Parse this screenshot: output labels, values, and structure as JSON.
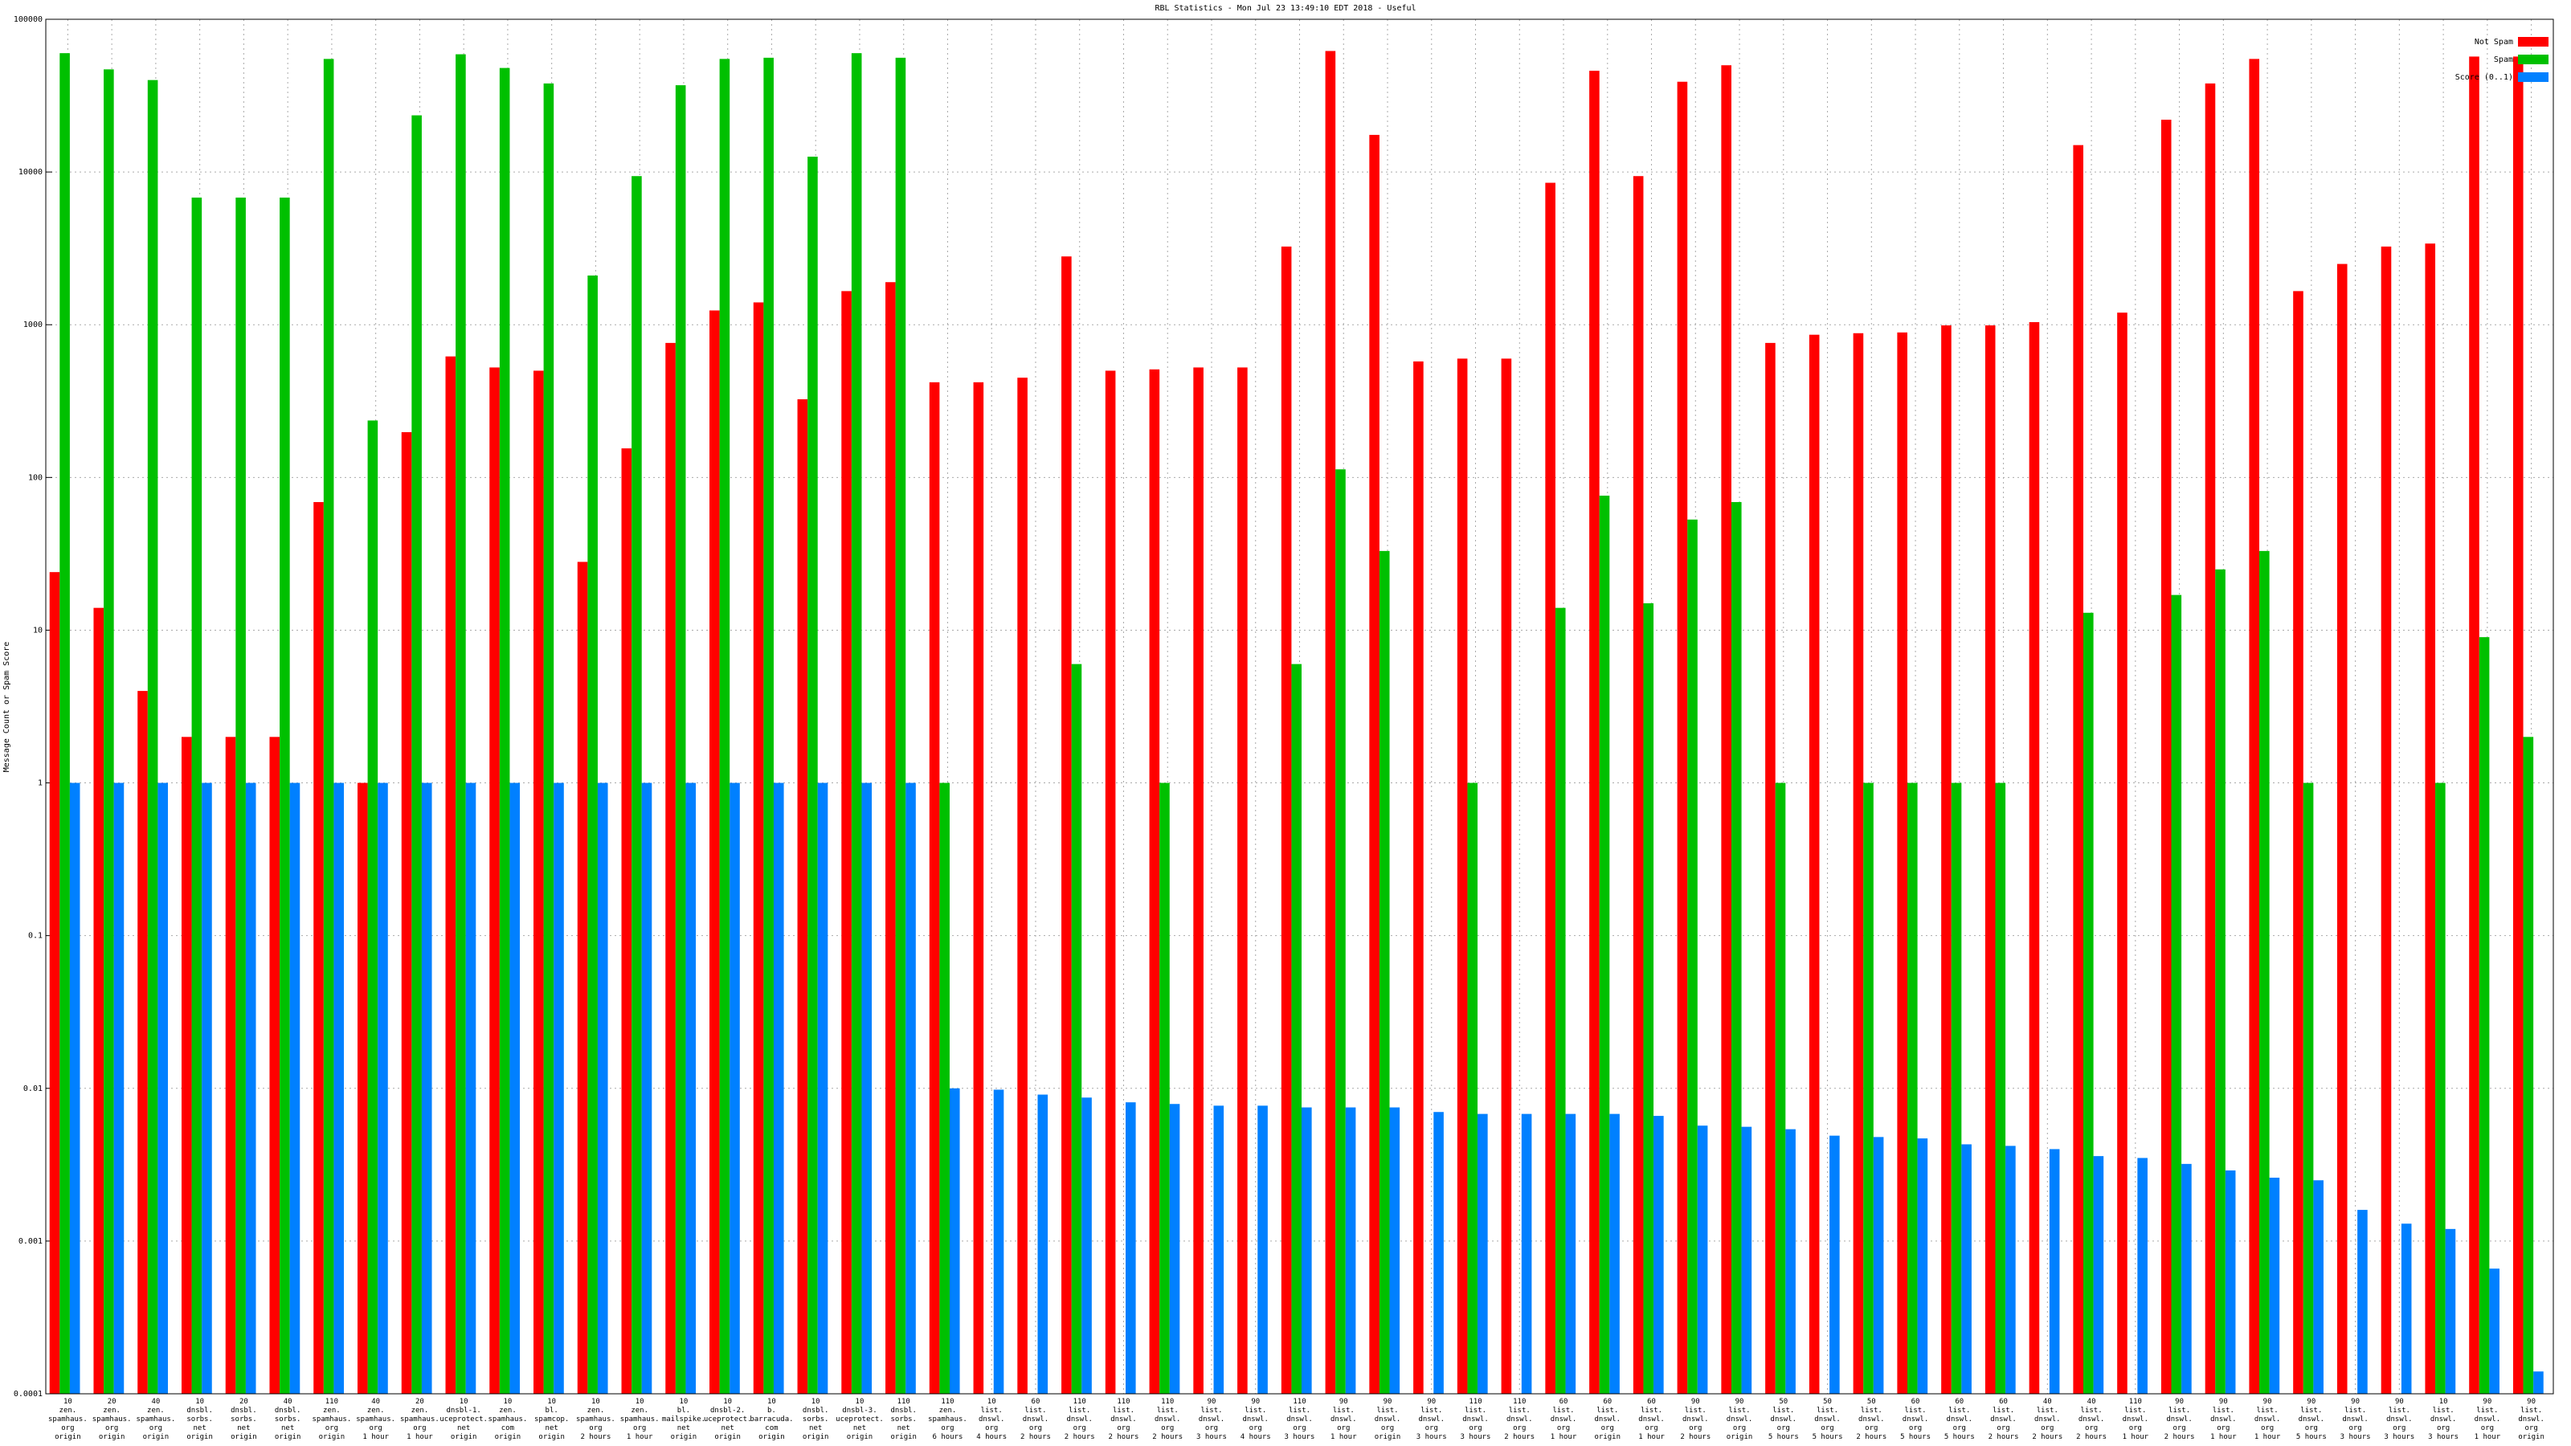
{
  "chart_data": {
    "type": "bar",
    "title": "RBL Statistics - Mon Jul 23 13:49:10 EDT 2018 - Useful",
    "y_label": "Message Count or Spam Score",
    "log_y": true,
    "grid": true,
    "legend": "top-right",
    "ylim": [
      0.0001,
      100000
    ],
    "yticks": [
      0.0001,
      0.001,
      0.01,
      0.1,
      1,
      10,
      100,
      1000,
      10000,
      100000
    ],
    "categories": [
      "10\nzen.\nspamhaus.\norg\norigin",
      "20\nzen.\nspamhaus.\norg\norigin",
      "40\nzen.\nspamhaus.\norg\norigin",
      "10\ndnsbl.\nsorbs.\nnet\norigin",
      "20\ndnsbl.\nsorbs.\nnet\norigin",
      "40\ndnsbl.\nsorbs.\nnet\norigin",
      "110\nzen.\nspamhaus.\norg\norigin",
      "40\nzen.\nspamhaus.\norg\n1 hour",
      "20\nzen.\nspamhaus.\norg\n1 hour",
      "10\ndnsbl-1.\nuceprotect.\nnet\norigin",
      "10\nzen.\nspamhaus.\ncom\norigin",
      "10\nbl.\nspamcop.\nnet\norigin",
      "10\nzen.\nspamhaus.\norg\n2 hours",
      "10\nzen.\nspamhaus.\norg\n1 hour",
      "10\nbl.\nmailspike.\nnet\norigin",
      "10\ndnsbl-2.\nuceprotect.\nnet\norigin",
      "10\nb.\nbarracuda.\ncom\norigin",
      "10\ndnsbl.\nsorbs.\nnet\norigin",
      "10\ndnsbl-3.\nuceprotect.\nnet\norigin",
      "110\ndnsbl.\nsorbs.\nnet\norigin",
      "110\nzen.\nspamhaus.\norg\n6 hours",
      "10\nlist.\ndnswl.\norg\n4 hours",
      "60\nlist.\ndnswl.\norg\n2 hours",
      "110\nlist.\ndnswl.\norg\n2 hours",
      "110\nlist.\ndnswl.\norg\n2 hours",
      "110\nlist.\ndnswl.\norg\n2 hours",
      "90\nlist.\ndnswl.\norg\n3 hours",
      "90\nlist.\ndnswl.\norg\n4 hours",
      "110\nlist.\ndnswl.\norg\n3 hours",
      "90\nlist.\ndnswl.\norg\n1 hour",
      "90\nlist.\ndnswl.\norg\norigin",
      "90\nlist.\ndnswl.\norg\n3 hours",
      "110\nlist.\ndnswl.\norg\n3 hours",
      "110\nlist.\ndnswl.\norg\n2 hours",
      "60\nlist.\ndnswl.\norg\n1 hour",
      "60\nlist.\ndnswl.\norg\norigin",
      "60\nlist.\ndnswl.\norg\n1 hour",
      "90\nlist.\ndnswl.\norg\n2 hours",
      "90\nlist.\ndnswl.\norg\norigin",
      "50\nlist.\ndnswl.\norg\n5 hours",
      "50\nlist.\ndnswl.\norg\n5 hours",
      "50\nlist.\ndnswl.\norg\n2 hours",
      "60\nlist.\ndnswl.\norg\n5 hours",
      "60\nlist.\ndnswl.\norg\n5 hours",
      "60\nlist.\ndnswl.\norg\n2 hours",
      "40\nlist.\ndnswl.\norg\n2 hours",
      "40\nlist.\ndnswl.\norg\n2 hours",
      "110\nlist.\ndnswl.\norg\n1 hour",
      "90\nlist.\ndnswl.\norg\n2 hours",
      "90\nlist.\ndnswl.\norg\n1 hour",
      "90\nlist.\ndnswl.\norg\n1 hour",
      "90\nlist.\ndnswl.\norg\n5 hours",
      "90\nlist.\ndnswl.\norg\n3 hours",
      "90\nlist.\ndnswl.\norg\n3 hours",
      "10\nlist.\ndnswl.\norg\n3 hours",
      "90\nlist.\ndnswl.\norg\n1 hour",
      "90\nlist.\ndnswl.\norg\norigin"
    ],
    "series": [
      {
        "name": "Not Spam",
        "color": "#ff0000",
        "values": [
          24,
          14,
          4,
          2,
          2,
          2,
          69,
          1,
          198,
          620,
          525,
          500,
          28,
          155,
          760,
          1240,
          1400,
          325,
          1660,
          1900,
          420,
          420,
          450,
          2800,
          500,
          510,
          525,
          525,
          3250,
          62000,
          17500,
          575,
          600,
          600,
          8500,
          46000,
          9400,
          39000,
          50000,
          760,
          860,
          880,
          890,
          990,
          990,
          1040,
          15000,
          1200,
          22000,
          38000,
          55000,
          1660,
          2500,
          3250,
          3400,
          57000,
          57000
        ]
      },
      {
        "name": "Spam",
        "color": "#00c000",
        "values": [
          60000,
          47000,
          40000,
          6800,
          6800,
          6800,
          55000,
          236,
          23500,
          59000,
          48000,
          38000,
          2100,
          9400,
          37000,
          55000,
          56000,
          12600,
          60000,
          56000,
          1,
          null,
          null,
          6,
          null,
          1,
          null,
          null,
          6,
          113,
          33,
          null,
          1,
          null,
          14,
          76,
          15,
          53,
          69,
          1,
          null,
          1,
          1,
          1,
          1,
          null,
          13,
          null,
          17,
          25,
          33,
          1,
          null,
          null,
          1,
          9,
          2
        ]
      },
      {
        "name": "Score (0..1)",
        "color": "#0080ff",
        "values": [
          1,
          1,
          1,
          1,
          1,
          1,
          1,
          1,
          1,
          1,
          1,
          1,
          1,
          1,
          1,
          1,
          1,
          1,
          1,
          1,
          0.01,
          0.0098,
          0.0091,
          0.0087,
          0.0081,
          0.0079,
          0.0077,
          0.0077,
          0.0075,
          0.0075,
          0.0075,
          0.007,
          0.0068,
          0.0068,
          0.0068,
          0.0068,
          0.0066,
          0.0057,
          0.0056,
          0.0054,
          0.0049,
          0.0048,
          0.0047,
          0.0043,
          0.0042,
          0.004,
          0.0036,
          0.0035,
          0.0032,
          0.0029,
          0.0026,
          0.0025,
          0.0016,
          0.0013,
          0.0012,
          0.00066,
          0.00014
        ]
      }
    ]
  }
}
